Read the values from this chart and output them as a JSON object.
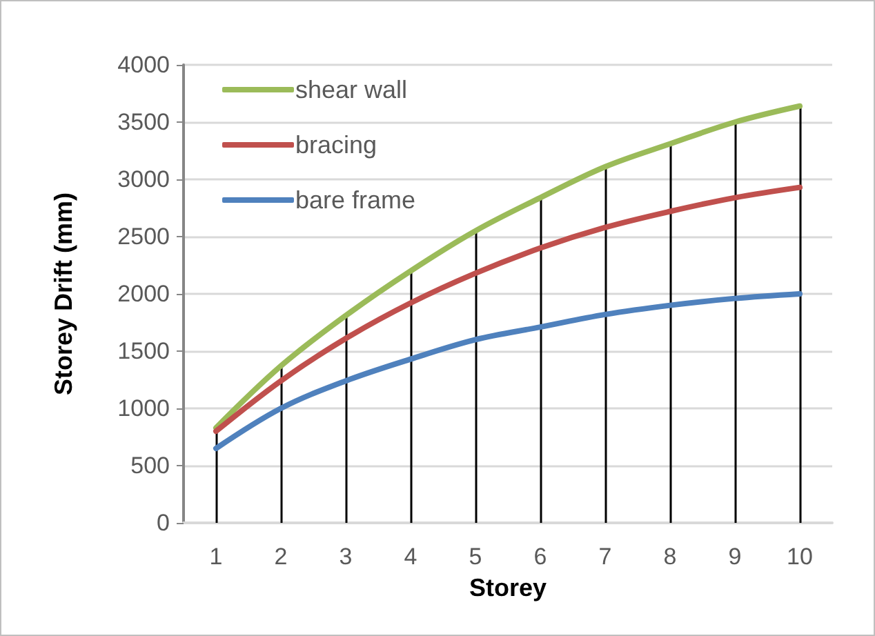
{
  "chart_data": {
    "type": "line",
    "xlabel": "Storey",
    "ylabel": "Storey Drift (mm)",
    "categories": [
      "1",
      "2",
      "3",
      "4",
      "5",
      "6",
      "7",
      "8",
      "9",
      "10"
    ],
    "series": [
      {
        "name": "shear wall",
        "color": "#9bbb59",
        "values": [
          830,
          1370,
          1810,
          2200,
          2550,
          2840,
          3110,
          3310,
          3500,
          3640
        ]
      },
      {
        "name": "bracing",
        "color": "#c0504d",
        "values": [
          800,
          1240,
          1610,
          1920,
          2180,
          2400,
          2580,
          2720,
          2840,
          2930
        ]
      },
      {
        "name": "bare frame",
        "color": "#4f81bd",
        "values": [
          650,
          1000,
          1240,
          1430,
          1600,
          1710,
          1820,
          1900,
          1960,
          2000
        ]
      }
    ],
    "ylim": [
      0,
      4000
    ],
    "yticks": [
      0,
      500,
      1000,
      1500,
      2000,
      2500,
      3000,
      3500,
      4000
    ],
    "grid": "y",
    "ref_lines": [
      {
        "axis": "x",
        "value": "1",
        "color": "#000000"
      },
      {
        "axis": "x",
        "value": "2",
        "color": "#000000"
      },
      {
        "axis": "x",
        "value": "3",
        "color": "#000000"
      },
      {
        "axis": "x",
        "value": "4",
        "color": "#000000"
      },
      {
        "axis": "x",
        "value": "5",
        "color": "#000000"
      },
      {
        "axis": "x",
        "value": "6",
        "color": "#000000"
      },
      {
        "axis": "x",
        "value": "7",
        "color": "#000000"
      },
      {
        "axis": "x",
        "value": "8",
        "color": "#000000"
      },
      {
        "axis": "x",
        "value": "9",
        "color": "#000000"
      },
      {
        "axis": "x",
        "value": "10",
        "color": "#000000"
      }
    ],
    "legend": "top left",
    "marker": "none",
    "line_style": "solid"
  }
}
